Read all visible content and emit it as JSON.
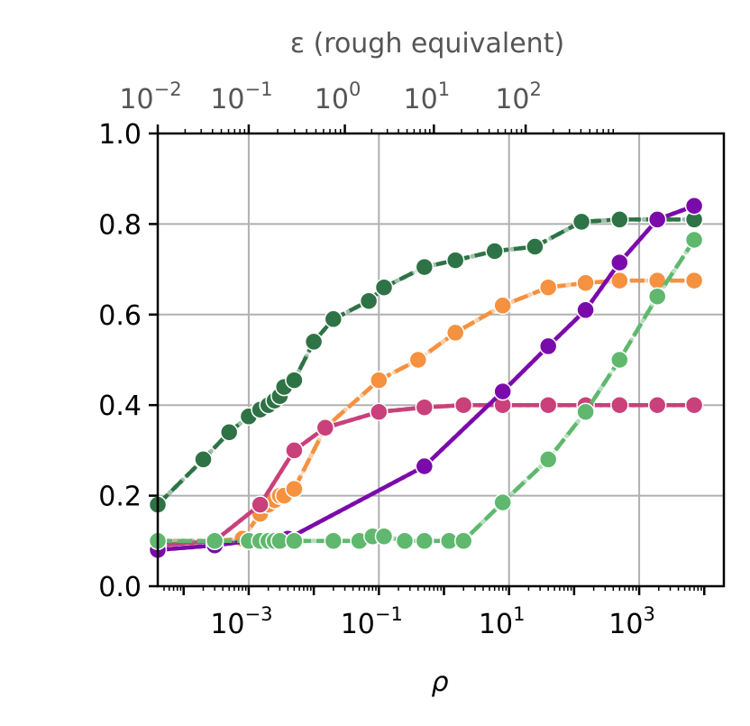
{
  "chart_data": {
    "type": "line",
    "xlabel": "ρ",
    "ylabel": "",
    "x_scale": "log",
    "xlim": [
      4e-05,
      20000
    ],
    "ylim": [
      0.0,
      1.0
    ],
    "grid": true,
    "x_ticks": [
      0.001,
      0.1,
      10,
      1000
    ],
    "x_tick_labels": [
      {
        "base": "10",
        "exp": "−3"
      },
      {
        "base": "10",
        "exp": "−1"
      },
      {
        "base": "10",
        "exp": "1"
      },
      {
        "base": "10",
        "exp": "3"
      }
    ],
    "y_ticks": [
      0.0,
      0.2,
      0.4,
      0.6,
      0.8,
      1.0
    ],
    "y_tick_labels": [
      "0.0",
      "0.2",
      "0.4",
      "0.6",
      "0.8",
      "1.0"
    ],
    "top_axis": {
      "label": "ε (rough equivalent)",
      "ticks_x_rho": [
        4e-05,
        0.001,
        0.03,
        0.7,
        18
      ],
      "tick_labels": [
        {
          "base": "10",
          "exp": "−2"
        },
        {
          "base": "10",
          "exp": "−1"
        },
        {
          "base": "10",
          "exp": "0"
        },
        {
          "base": "10",
          "exp": "1"
        },
        {
          "base": "10",
          "exp": "2"
        }
      ]
    },
    "series": [
      {
        "color": "#2e7346",
        "style": "dashed",
        "x": [
          4e-05,
          0.0002,
          0.0005,
          0.001,
          0.0015,
          0.002,
          0.0025,
          0.003,
          0.0035,
          0.005,
          0.01,
          0.02,
          0.07,
          0.12,
          0.5,
          1.5,
          6,
          25,
          130,
          500,
          1900,
          7000
        ],
        "y": [
          0.18,
          0.28,
          0.34,
          0.375,
          0.39,
          0.4,
          0.41,
          0.42,
          0.44,
          0.455,
          0.54,
          0.59,
          0.63,
          0.66,
          0.705,
          0.72,
          0.74,
          0.75,
          0.805,
          0.81,
          0.81,
          0.81
        ]
      },
      {
        "color": "#f5913f",
        "style": "dashed",
        "x": [
          4e-05,
          0.0003,
          0.0008,
          0.0015,
          0.002,
          0.0025,
          0.003,
          0.0035,
          0.005,
          0.015,
          0.1,
          0.4,
          1.5,
          8,
          40,
          150,
          500,
          1900,
          7000
        ],
        "y": [
          0.1,
          0.1,
          0.105,
          0.16,
          0.18,
          0.19,
          0.2,
          0.2,
          0.215,
          0.35,
          0.455,
          0.5,
          0.56,
          0.62,
          0.66,
          0.67,
          0.675,
          0.675,
          0.675
        ]
      },
      {
        "color": "#c9407a",
        "style": "solid",
        "x": [
          4e-05,
          0.0003,
          0.0015,
          0.005,
          0.015,
          0.1,
          0.5,
          2,
          8,
          40,
          150,
          500,
          1900,
          7000
        ],
        "y": [
          0.09,
          0.1,
          0.18,
          0.3,
          0.35,
          0.385,
          0.395,
          0.4,
          0.4,
          0.4,
          0.4,
          0.4,
          0.4,
          0.4
        ]
      },
      {
        "color": "#7b0aab",
        "style": "solid",
        "x": [
          4e-05,
          0.0003,
          0.001,
          0.002,
          0.004,
          0.5,
          8,
          40,
          150,
          500,
          1900,
          7000
        ],
        "y": [
          0.08,
          0.09,
          0.1,
          0.1,
          0.105,
          0.265,
          0.43,
          0.53,
          0.61,
          0.715,
          0.81,
          0.84
        ]
      },
      {
        "color": "#5fb86e",
        "style": "dashed",
        "x": [
          4e-05,
          0.0003,
          0.001,
          0.0015,
          0.002,
          0.0025,
          0.003,
          0.005,
          0.02,
          0.05,
          0.08,
          0.12,
          0.25,
          0.5,
          1.2,
          2,
          8,
          40,
          150,
          500,
          1900,
          7000
        ],
        "y": [
          0.1,
          0.1,
          0.1,
          0.1,
          0.1,
          0.1,
          0.1,
          0.1,
          0.1,
          0.1,
          0.11,
          0.11,
          0.1,
          0.1,
          0.1,
          0.1,
          0.185,
          0.28,
          0.385,
          0.5,
          0.64,
          0.765
        ]
      }
    ]
  }
}
